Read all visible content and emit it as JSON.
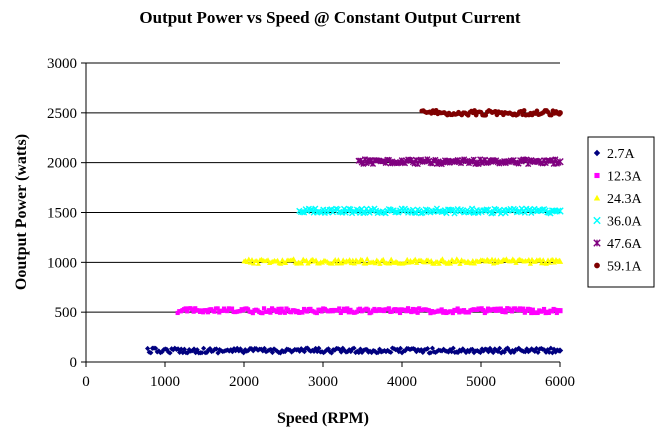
{
  "chart_data": {
    "type": "scatter",
    "title": "Output Power vs Speed @ Constant Output Current",
    "xlabel": "Speed (RPM)",
    "ylabel": "Ooutput Power (watts)",
    "xlim": [
      0,
      6000
    ],
    "ylim": [
      0,
      3000
    ],
    "x_ticks": [
      0,
      1000,
      2000,
      3000,
      4000,
      5000,
      6000
    ],
    "y_ticks": [
      0,
      500,
      1000,
      1500,
      2000,
      2500,
      3000
    ],
    "grid": "horizontal major gridlines",
    "legend_position": "right",
    "series": [
      {
        "name": "2.7A",
        "color": "#00007f",
        "marker": "diamond",
        "x_range": [
          780,
          6000
        ],
        "y": 115
      },
      {
        "name": "12.3A",
        "color": "#ff00ff",
        "marker": "square",
        "x_range": [
          1160,
          6000
        ],
        "y": 515
      },
      {
        "name": "24.3A",
        "color": "#ffff00",
        "marker": "triangle",
        "x_range": [
          2000,
          6000
        ],
        "y": 1010
      },
      {
        "name": "36.0A",
        "color": "#00ffff",
        "marker": "x",
        "x_range": [
          2700,
          6000
        ],
        "y": 1515
      },
      {
        "name": "47.6A",
        "color": "#7f007f",
        "marker": "star",
        "x_range": [
          3450,
          6000
        ],
        "y": 2010
      },
      {
        "name": "59.1A",
        "color": "#7f0000",
        "marker": "circle",
        "x_range": [
          4250,
          6000
        ],
        "y": 2500
      }
    ]
  }
}
